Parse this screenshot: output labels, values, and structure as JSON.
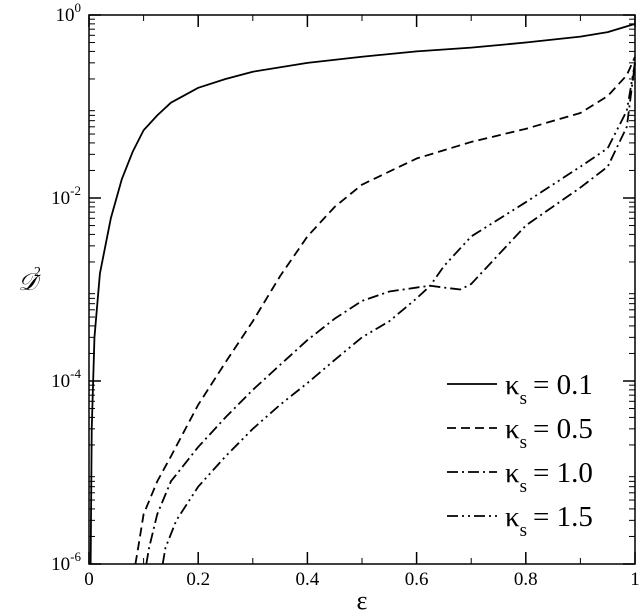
{
  "chart_data": {
    "type": "line",
    "title": "",
    "xlabel": "ε",
    "ylabel": "𝒟",
    "ylabel_superscript": "2",
    "x_range": [
      0,
      1
    ],
    "y_range": [
      1e-06,
      1
    ],
    "y_scale": "log",
    "grid": false,
    "legend_position": "bottom-right",
    "x_ticks": [
      "0",
      "0.2",
      "0.4",
      "0.6",
      "0.8",
      "1"
    ],
    "y_ticks": [
      {
        "base": "10",
        "exp": "-6",
        "value": 1e-06
      },
      {
        "base": "10",
        "exp": "-4",
        "value": 0.0001
      },
      {
        "base": "10",
        "exp": "-2",
        "value": 0.01
      },
      {
        "base": "10",
        "exp": "0",
        "value": 1
      }
    ],
    "series": [
      {
        "name": "κs = 0.1",
        "legend_symbol": "κ",
        "legend_subscript": "s",
        "legend_value": "= 0.1",
        "dash": "solid",
        "points": [
          [
            0.003,
            1e-06
          ],
          [
            0.005,
            3e-05
          ],
          [
            0.01,
            0.0003
          ],
          [
            0.02,
            0.0015
          ],
          [
            0.04,
            0.006
          ],
          [
            0.06,
            0.016
          ],
          [
            0.08,
            0.032
          ],
          [
            0.1,
            0.055
          ],
          [
            0.125,
            0.08
          ],
          [
            0.15,
            0.11
          ],
          [
            0.2,
            0.16
          ],
          [
            0.25,
            0.2
          ],
          [
            0.3,
            0.24
          ],
          [
            0.4,
            0.3
          ],
          [
            0.5,
            0.35
          ],
          [
            0.6,
            0.4
          ],
          [
            0.7,
            0.44
          ],
          [
            0.8,
            0.5
          ],
          [
            0.9,
            0.58
          ],
          [
            0.95,
            0.65
          ],
          [
            1.0,
            0.8
          ]
        ]
      },
      {
        "name": "κs = 0.5",
        "legend_symbol": "κ",
        "legend_subscript": "s",
        "legend_value": "= 0.5",
        "dash": "dashed",
        "points": [
          [
            0.085,
            1e-06
          ],
          [
            0.09,
            1.5e-06
          ],
          [
            0.1,
            3.5e-06
          ],
          [
            0.125,
            8e-06
          ],
          [
            0.15,
            1.5e-05
          ],
          [
            0.2,
            5.5e-05
          ],
          [
            0.25,
            0.00016
          ],
          [
            0.3,
            0.00045
          ],
          [
            0.35,
            0.0014
          ],
          [
            0.4,
            0.0038
          ],
          [
            0.45,
            0.008
          ],
          [
            0.5,
            0.014
          ],
          [
            0.6,
            0.027
          ],
          [
            0.7,
            0.041
          ],
          [
            0.8,
            0.057
          ],
          [
            0.9,
            0.085
          ],
          [
            0.95,
            0.13
          ],
          [
            0.985,
            0.22
          ],
          [
            1.0,
            0.35
          ]
        ]
      },
      {
        "name": "κs = 1.0",
        "legend_symbol": "κ",
        "legend_subscript": "s",
        "legend_value": "= 1.0",
        "dash": "dash-dot",
        "points": [
          [
            0.105,
            1e-06
          ],
          [
            0.11,
            1.5e-06
          ],
          [
            0.125,
            3.5e-06
          ],
          [
            0.15,
            8e-06
          ],
          [
            0.2,
            1.9e-05
          ],
          [
            0.25,
            4e-05
          ],
          [
            0.3,
            8e-05
          ],
          [
            0.35,
            0.00015
          ],
          [
            0.4,
            0.00028
          ],
          [
            0.45,
            0.00048
          ],
          [
            0.5,
            0.00075
          ],
          [
            0.55,
            0.00095
          ],
          [
            0.6,
            0.00105
          ],
          [
            0.625,
            0.0011
          ],
          [
            0.65,
            0.00105
          ],
          [
            0.68,
            0.001
          ],
          [
            0.7,
            0.00115
          ],
          [
            0.75,
            0.0024
          ],
          [
            0.8,
            0.005
          ],
          [
            0.9,
            0.013
          ],
          [
            0.95,
            0.022
          ],
          [
            0.985,
            0.06
          ],
          [
            1.0,
            0.3
          ]
        ]
      },
      {
        "name": "κs = 1.5",
        "legend_symbol": "κ",
        "legend_subscript": "s",
        "legend_value": "= 1.5",
        "dash": "dash-dot-dot",
        "points": [
          [
            0.135,
            1e-06
          ],
          [
            0.14,
            1.5e-06
          ],
          [
            0.16,
            3e-06
          ],
          [
            0.2,
            7e-06
          ],
          [
            0.25,
            1.5e-05
          ],
          [
            0.3,
            3e-05
          ],
          [
            0.35,
            5.5e-05
          ],
          [
            0.4,
            9.5e-05
          ],
          [
            0.45,
            0.00017
          ],
          [
            0.5,
            0.0003
          ],
          [
            0.55,
            0.00045
          ],
          [
            0.6,
            0.0008
          ],
          [
            0.625,
            0.0011
          ],
          [
            0.65,
            0.0018
          ],
          [
            0.7,
            0.0038
          ],
          [
            0.8,
            0.009
          ],
          [
            0.9,
            0.022
          ],
          [
            0.95,
            0.035
          ],
          [
            0.985,
            0.09
          ],
          [
            1.0,
            0.3
          ]
        ]
      }
    ]
  }
}
